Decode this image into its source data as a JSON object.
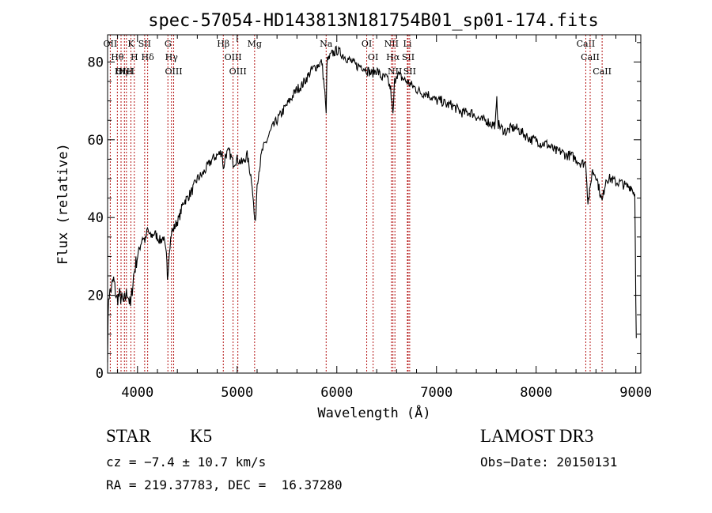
{
  "chart_data": {
    "type": "line",
    "title": "spec-57054-HD143813N181754B01_sp01-174.fits",
    "xlabel": "Wavelength (Å)",
    "ylabel": "Flux (relative)",
    "xlim": [
      3700,
      9050
    ],
    "ylim": [
      0,
      87
    ],
    "xticks": [
      4000,
      5000,
      6000,
      7000,
      8000,
      9000
    ],
    "yticks": [
      0,
      20,
      40,
      60,
      80
    ],
    "series": [
      {
        "name": "flux",
        "x": [
          3700,
          3710,
          3730,
          3760,
          3790,
          3820,
          3860,
          3900,
          3930,
          3960,
          3990,
          4020,
          4050,
          4080,
          4100,
          4130,
          4170,
          4200,
          4230,
          4260,
          4290,
          4300,
          4320,
          4340,
          4380,
          4420,
          4460,
          4500,
          4550,
          4600,
          4650,
          4700,
          4750,
          4800,
          4850,
          4861,
          4880,
          4920,
          4960,
          5000,
          5050,
          5100,
          5150,
          5170,
          5183,
          5200,
          5250,
          5300,
          5350,
          5400,
          5450,
          5500,
          5550,
          5600,
          5650,
          5700,
          5750,
          5800,
          5850,
          5880,
          5893,
          5900,
          5950,
          6000,
          6050,
          6100,
          6150,
          6200,
          6250,
          6300,
          6350,
          6400,
          6450,
          6500,
          6540,
          6563,
          6580,
          6600,
          6650,
          6700,
          6750,
          6800,
          6850,
          6900,
          6950,
          7000,
          7050,
          7100,
          7150,
          7200,
          7250,
          7300,
          7350,
          7400,
          7450,
          7500,
          7550,
          7590,
          7605,
          7620,
          7650,
          7700,
          7750,
          7800,
          7850,
          7900,
          7950,
          8000,
          8050,
          8100,
          8150,
          8200,
          8250,
          8300,
          8350,
          8400,
          8450,
          8498,
          8520,
          8542,
          8560,
          8600,
          8662,
          8700,
          8750,
          8800,
          8850,
          8900,
          8950,
          8990,
          9000,
          9005
        ],
        "values": [
          5,
          20,
          21,
          24,
          19,
          20,
          18,
          21,
          17,
          25,
          29,
          32,
          35,
          34,
          37,
          35,
          36,
          35,
          34,
          35,
          30,
          25,
          32,
          36,
          38,
          40,
          44,
          45,
          47,
          50,
          51,
          53,
          55,
          56,
          57,
          52,
          56,
          57,
          54,
          55,
          54,
          56,
          49,
          41,
          38,
          49,
          57,
          60,
          63,
          65,
          67,
          69,
          71,
          73,
          74,
          76,
          78,
          79,
          80,
          72,
          66,
          80,
          82,
          83,
          82,
          81,
          80,
          79,
          79,
          78,
          77,
          78,
          76,
          76,
          73,
          66,
          75,
          77,
          76,
          75,
          74,
          73,
          72,
          72,
          71,
          70,
          70,
          69,
          69,
          68,
          67,
          67,
          67,
          66,
          65,
          65,
          64,
          64,
          70,
          64,
          63,
          62,
          63,
          63,
          62,
          61,
          60,
          60,
          59,
          59,
          58,
          57,
          57,
          56,
          56,
          55,
          54,
          54,
          44,
          47,
          52,
          51,
          44,
          50,
          50,
          49,
          49,
          48,
          48,
          46,
          20,
          9
        ]
      }
    ],
    "line_markers": [
      {
        "label": "Hθ",
        "x": 3798
      },
      {
        "label": "OII",
        "x": 3727
      },
      {
        "label": "OIII",
        "x": 3869
      },
      {
        "label": "K",
        "x": 3934
      },
      {
        "label": "H",
        "x": 3968
      },
      {
        "label": "HeI",
        "x": 3889
      },
      {
        "label": "Hη",
        "x": 3835
      },
      {
        "label": "SII",
        "x": 4072
      },
      {
        "label": "Hδ",
        "x": 4102
      },
      {
        "label": "OIII",
        "x": 4363
      },
      {
        "label": "Hγ",
        "x": 4341
      },
      {
        "label": "G",
        "x": 4305
      },
      {
        "label": "Hβ",
        "x": 4861
      },
      {
        "label": "OIII",
        "x": 4959
      },
      {
        "label": "OIII",
        "x": 5007
      },
      {
        "label": "Mg",
        "x": 5175
      },
      {
        "label": "Na",
        "x": 5893
      },
      {
        "label": "OI",
        "x": 6300
      },
      {
        "label": "OI",
        "x": 6364
      },
      {
        "label": "Hα",
        "x": 6563
      },
      {
        "label": "NII",
        "x": 6548
      },
      {
        "label": "NII",
        "x": 6583
      },
      {
        "label": "Li",
        "x": 6708
      },
      {
        "label": "SII",
        "x": 6716
      },
      {
        "label": "SII",
        "x": 6731
      },
      {
        "label": "CaII",
        "x": 8498
      },
      {
        "label": "CaII",
        "x": 8542
      },
      {
        "label": "CaII",
        "x": 8662
      }
    ]
  },
  "info": {
    "class": "STAR",
    "subclass": "K5",
    "survey": "LAMOST DR3",
    "cz": "cz = −7.4 ± 10.7 km/s",
    "obs_date": "Obs−Date: 20150131",
    "coords": "RA = 219.37783, DEC =  16.37280"
  },
  "colors": {
    "spectrum": "#000000",
    "marker": "#b41414",
    "axis": "#000000",
    "background": "#ffffff"
  }
}
